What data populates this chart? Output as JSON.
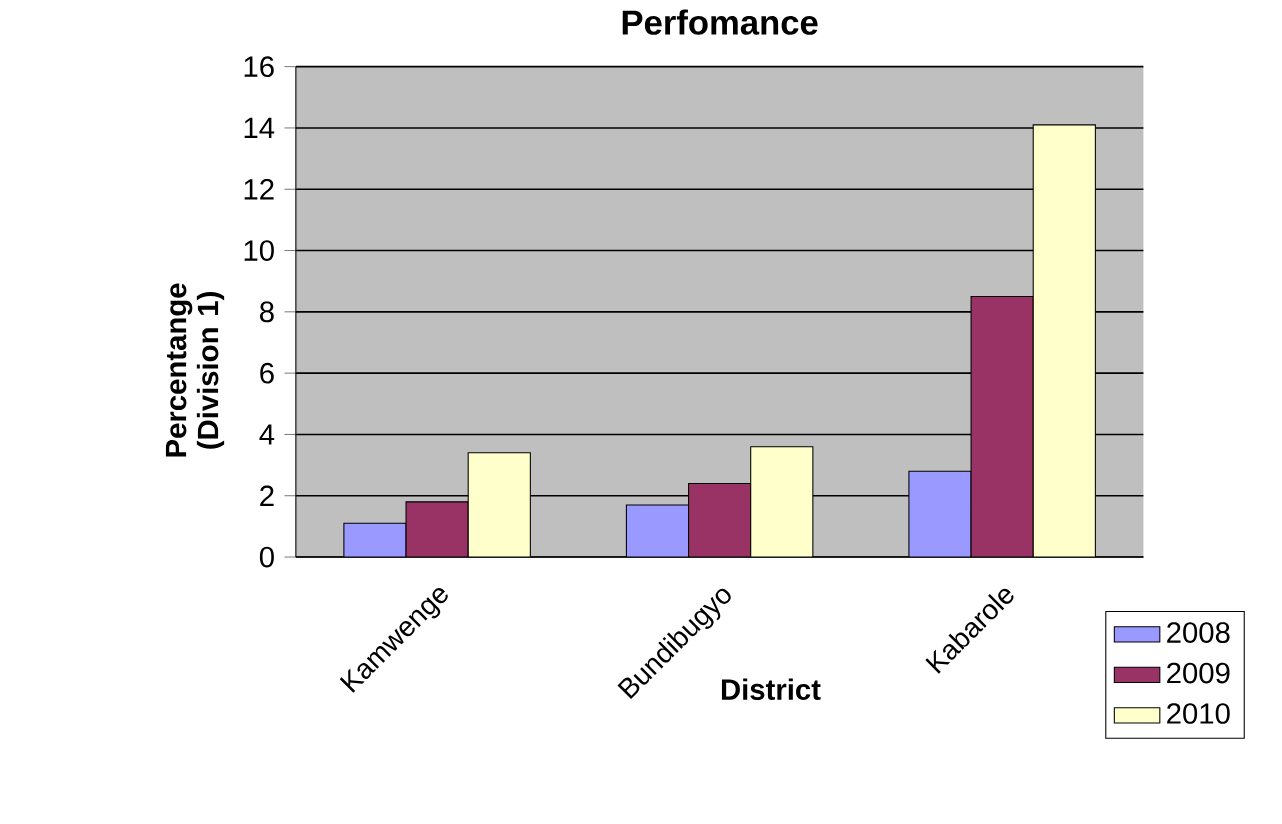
{
  "chart_data": {
    "type": "bar",
    "title": "Perfomance",
    "xlabel": "District",
    "ylabel": "Percentange (Division 1)",
    "categories": [
      "Kamwenge",
      "Bundibugyo",
      "Kabarole"
    ],
    "series": [
      {
        "name": "2008",
        "color": "#9999ff",
        "values": [
          1.1,
          1.7,
          2.8
        ]
      },
      {
        "name": "2009",
        "color": "#993366",
        "values": [
          1.8,
          2.4,
          8.5
        ]
      },
      {
        "name": "2010",
        "color": "#ffffcc",
        "values": [
          3.4,
          3.6,
          14.1
        ]
      }
    ],
    "ylim": [
      0,
      16
    ],
    "yticks": [
      0,
      2,
      4,
      6,
      8,
      10,
      12,
      14,
      16
    ],
    "grid": "y",
    "legend": "bottom right"
  }
}
